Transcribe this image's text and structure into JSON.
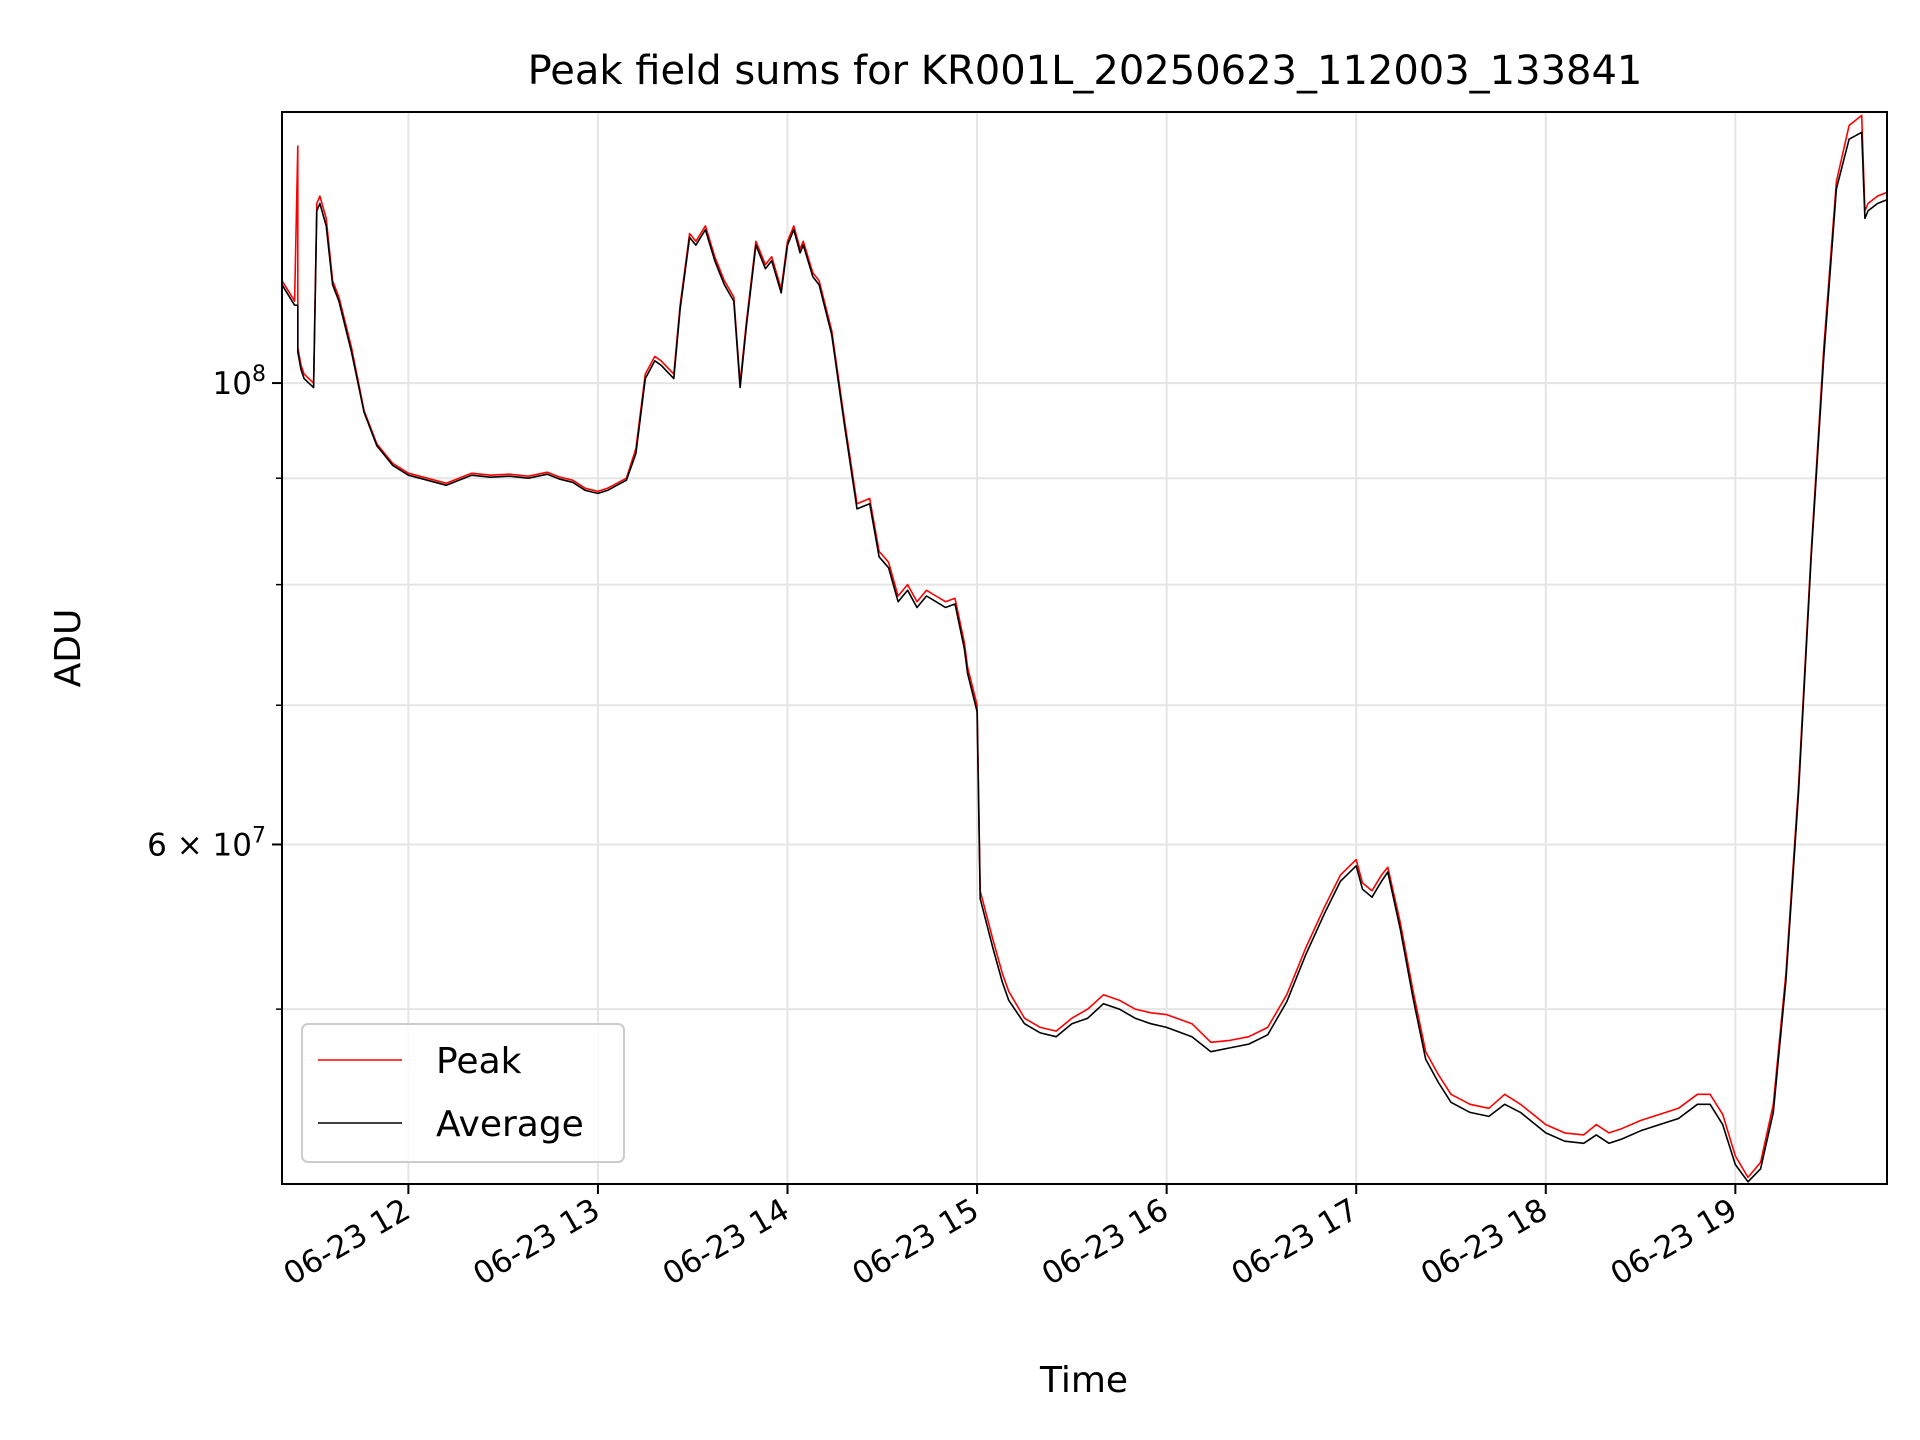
{
  "chart_data": {
    "type": "line",
    "title": "Peak field sums for KR001L_20250623_112003_133841",
    "xlabel": "Time",
    "ylabel": "ADU",
    "yscale": "log",
    "ylim": [
      41200000,
      135000000
    ],
    "xlim": [
      "06-23 11:20",
      "06-23 19:48"
    ],
    "grid": true,
    "legend": "lower-left",
    "x_ticks": [
      "06-23 12",
      "06-23 13",
      "06-23 14",
      "06-23 15",
      "06-23 16",
      "06-23 17",
      "06-23 18",
      "06-23 19"
    ],
    "y_ticks_labeled": [
      {
        "label_base": "10",
        "label_exp": "8",
        "value": 100000000
      },
      {
        "label_base": "6 × 10",
        "label_exp": "7",
        "value": 60000000
      }
    ],
    "y_minor_ticks": [
      50000000,
      70000000,
      80000000,
      90000000
    ],
    "series": [
      {
        "name": "Peak",
        "color": "#ff0000",
        "x": [
          "06-23 11:20",
          "06-23 11:24",
          "06-23 11:25",
          "06-23 11:25",
          "06-23 11:26",
          "06-23 11:27",
          "06-23 11:30",
          "06-23 11:31",
          "06-23 11:32",
          "06-23 11:34",
          "06-23 11:36",
          "06-23 11:38",
          "06-23 11:42",
          "06-23 11:46",
          "06-23 11:50",
          "06-23 11:55",
          "06-23 12:00",
          "06-23 12:06",
          "06-23 12:12",
          "06-23 12:16",
          "06-23 12:20",
          "06-23 12:26",
          "06-23 12:32",
          "06-23 12:38",
          "06-23 12:44",
          "06-23 12:48",
          "06-23 12:52",
          "06-23 12:56",
          "06-23 13:00",
          "06-23 13:03",
          "06-23 13:06",
          "06-23 13:09",
          "06-23 13:12",
          "06-23 13:15",
          "06-23 13:18",
          "06-23 13:20",
          "06-23 13:24",
          "06-23 13:26",
          "06-23 13:29",
          "06-23 13:31",
          "06-23 13:34",
          "06-23 13:37",
          "06-23 13:40",
          "06-23 13:43",
          "06-23 13:45",
          "06-23 13:47",
          "06-23 13:50",
          "06-23 13:53",
          "06-23 13:55",
          "06-23 13:58",
          "06-23 14:00",
          "06-23 14:02",
          "06-23 14:04",
          "06-23 14:05",
          "06-23 14:08",
          "06-23 14:10",
          "06-23 14:14",
          "06-23 14:18",
          "06-23 14:22",
          "06-23 14:26",
          "06-23 14:29",
          "06-23 14:32",
          "06-23 14:35",
          "06-23 14:38",
          "06-23 14:41",
          "06-23 14:44",
          "06-23 14:47",
          "06-23 14:50",
          "06-23 14:53",
          "06-23 14:56",
          "06-23 14:57",
          "06-23 15:00",
          "06-23 15:01",
          "06-23 15:05",
          "06-23 15:08",
          "06-23 15:10",
          "06-23 15:15",
          "06-23 15:20",
          "06-23 15:25",
          "06-23 15:30",
          "06-23 15:35",
          "06-23 15:40",
          "06-23 15:45",
          "06-23 15:50",
          "06-23 15:55",
          "06-23 16:00",
          "06-23 16:08",
          "06-23 16:14",
          "06-23 16:20",
          "06-23 16:26",
          "06-23 16:32",
          "06-23 16:38",
          "06-23 16:44",
          "06-23 16:50",
          "06-23 16:55",
          "06-23 17:00",
          "06-23 17:02",
          "06-23 17:05",
          "06-23 17:08",
          "06-23 17:10",
          "06-23 17:14",
          "06-23 17:18",
          "06-23 17:22",
          "06-23 17:26",
          "06-23 17:30",
          "06-23 17:36",
          "06-23 17:42",
          "06-23 17:47",
          "06-23 17:52",
          "06-23 17:56",
          "06-23 18:00",
          "06-23 18:06",
          "06-23 18:12",
          "06-23 18:16",
          "06-23 18:20",
          "06-23 18:24",
          "06-23 18:30",
          "06-23 18:36",
          "06-23 18:42",
          "06-23 18:48",
          "06-23 18:52",
          "06-23 18:56",
          "06-23 19:00",
          "06-23 19:04",
          "06-23 19:08",
          "06-23 19:12",
          "06-23 19:16",
          "06-23 19:20",
          "06-23 19:24",
          "06-23 19:28",
          "06-23 19:32",
          "06-23 19:36",
          "06-23 19:40",
          "06-23 19:41",
          "06-23 19:42",
          "06-23 19:45",
          "06-23 19:48"
        ],
        "y": [
          112000000,
          109500000,
          130000000,
          104000000,
          102000000,
          101000000,
          100000000,
          122000000,
          123000000,
          120000000,
          112000000,
          110000000,
          104000000,
          97000000,
          93500000,
          91500000,
          90500000,
          90000000,
          89500000,
          90000000,
          90500000,
          90300000,
          90400000,
          90200000,
          90600000,
          90100000,
          89800000,
          89000000,
          88700000,
          89000000,
          89500000,
          90000000,
          93000000,
          101000000,
          103000000,
          102500000,
          101000000,
          109000000,
          118000000,
          117000000,
          119000000,
          115000000,
          112000000,
          110000000,
          100000000,
          107000000,
          117000000,
          114000000,
          115000000,
          111000000,
          117000000,
          119000000,
          116000000,
          117000000,
          113000000,
          112000000,
          106000000,
          96000000,
          87500000,
          88000000,
          83000000,
          82000000,
          79000000,
          80000000,
          78500000,
          79500000,
          79000000,
          78500000,
          78800000,
          75000000,
          73000000,
          70000000,
          57000000,
          54000000,
          52000000,
          51000000,
          49500000,
          49000000,
          48800000,
          49500000,
          50000000,
          50800000,
          50500000,
          50000000,
          49800000,
          49700000,
          49200000,
          48200000,
          48300000,
          48500000,
          49000000,
          50800000,
          53500000,
          56000000,
          58000000,
          59000000,
          57500000,
          57000000,
          58000000,
          58500000,
          55000000,
          51000000,
          47700000,
          46500000,
          45500000,
          45000000,
          44800000,
          45500000,
          45000000,
          44500000,
          44000000,
          43600000,
          43500000,
          44000000,
          43600000,
          43800000,
          44200000,
          44500000,
          44800000,
          45500000,
          45500000,
          44500000,
          42500000,
          41500000,
          42200000,
          45000000,
          52000000,
          64000000,
          83000000,
          104000000,
          125000000,
          133000000,
          134500000,
          121000000,
          122000000,
          123000000,
          123500000
        ]
      },
      {
        "name": "Average",
        "color": "#000000",
        "x": [
          "06-23 11:20",
          "06-23 11:24",
          "06-23 11:25",
          "06-23 11:25",
          "06-23 11:26",
          "06-23 11:27",
          "06-23 11:30",
          "06-23 11:31",
          "06-23 11:32",
          "06-23 11:34",
          "06-23 11:36",
          "06-23 11:38",
          "06-23 11:42",
          "06-23 11:46",
          "06-23 11:50",
          "06-23 11:55",
          "06-23 12:00",
          "06-23 12:06",
          "06-23 12:12",
          "06-23 12:16",
          "06-23 12:20",
          "06-23 12:26",
          "06-23 12:32",
          "06-23 12:38",
          "06-23 12:44",
          "06-23 12:48",
          "06-23 12:52",
          "06-23 12:56",
          "06-23 13:00",
          "06-23 13:03",
          "06-23 13:06",
          "06-23 13:09",
          "06-23 13:12",
          "06-23 13:15",
          "06-23 13:18",
          "06-23 13:20",
          "06-23 13:24",
          "06-23 13:26",
          "06-23 13:29",
          "06-23 13:31",
          "06-23 13:34",
          "06-23 13:37",
          "06-23 13:40",
          "06-23 13:43",
          "06-23 13:45",
          "06-23 13:47",
          "06-23 13:50",
          "06-23 13:53",
          "06-23 13:55",
          "06-23 13:58",
          "06-23 14:00",
          "06-23 14:02",
          "06-23 14:04",
          "06-23 14:05",
          "06-23 14:08",
          "06-23 14:10",
          "06-23 14:14",
          "06-23 14:18",
          "06-23 14:22",
          "06-23 14:26",
          "06-23 14:29",
          "06-23 14:32",
          "06-23 14:35",
          "06-23 14:38",
          "06-23 14:41",
          "06-23 14:44",
          "06-23 14:47",
          "06-23 14:50",
          "06-23 14:53",
          "06-23 14:56",
          "06-23 14:57",
          "06-23 15:00",
          "06-23 15:01",
          "06-23 15:05",
          "06-23 15:08",
          "06-23 15:10",
          "06-23 15:15",
          "06-23 15:20",
          "06-23 15:25",
          "06-23 15:30",
          "06-23 15:35",
          "06-23 15:40",
          "06-23 15:45",
          "06-23 15:50",
          "06-23 15:55",
          "06-23 16:00",
          "06-23 16:08",
          "06-23 16:14",
          "06-23 16:20",
          "06-23 16:26",
          "06-23 16:32",
          "06-23 16:38",
          "06-23 16:44",
          "06-23 16:50",
          "06-23 16:55",
          "06-23 17:00",
          "06-23 17:02",
          "06-23 17:05",
          "06-23 17:08",
          "06-23 17:10",
          "06-23 17:14",
          "06-23 17:18",
          "06-23 17:22",
          "06-23 17:26",
          "06-23 17:30",
          "06-23 17:36",
          "06-23 17:42",
          "06-23 17:47",
          "06-23 17:52",
          "06-23 17:56",
          "06-23 18:00",
          "06-23 18:06",
          "06-23 18:12",
          "06-23 18:16",
          "06-23 18:20",
          "06-23 18:24",
          "06-23 18:30",
          "06-23 18:36",
          "06-23 18:42",
          "06-23 18:48",
          "06-23 18:52",
          "06-23 18:56",
          "06-23 19:00",
          "06-23 19:04",
          "06-23 19:08",
          "06-23 19:12",
          "06-23 19:16",
          "06-23 19:20",
          "06-23 19:24",
          "06-23 19:28",
          "06-23 19:32",
          "06-23 19:36",
          "06-23 19:40",
          "06-23 19:41",
          "06-23 19:42",
          "06-23 19:45",
          "06-23 19:48"
        ],
        "y": [
          111500000,
          109000000,
          109000000,
          103500000,
          101500000,
          100500000,
          99500000,
          121000000,
          122000000,
          119000000,
          111500000,
          109500000,
          103500000,
          96800000,
          93300000,
          91300000,
          90300000,
          89800000,
          89300000,
          89800000,
          90300000,
          90100000,
          90200000,
          90000000,
          90400000,
          89900000,
          89600000,
          88800000,
          88500000,
          88800000,
          89300000,
          89800000,
          92500000,
          100500000,
          102500000,
          102000000,
          100500000,
          108500000,
          117500000,
          116500000,
          118500000,
          114500000,
          111500000,
          109500000,
          99500000,
          106500000,
          116500000,
          113500000,
          114500000,
          110500000,
          116500000,
          118500000,
          115500000,
          116500000,
          112500000,
          111500000,
          105500000,
          95500000,
          87000000,
          87500000,
          82500000,
          81500000,
          78500000,
          79500000,
          78000000,
          79000000,
          78500000,
          78000000,
          78300000,
          74500000,
          72500000,
          69500000,
          56500000,
          53500000,
          51500000,
          50500000,
          49200000,
          48700000,
          48500000,
          49200000,
          49500000,
          50300000,
          50000000,
          49500000,
          49200000,
          49000000,
          48500000,
          47700000,
          47900000,
          48100000,
          48600000,
          50400000,
          53100000,
          55600000,
          57600000,
          58600000,
          57100000,
          56600000,
          57600000,
          58200000,
          54600000,
          50600000,
          47300000,
          46100000,
          45100000,
          44600000,
          44400000,
          45000000,
          44600000,
          44100000,
          43600000,
          43200000,
          43100000,
          43500000,
          43100000,
          43300000,
          43700000,
          44000000,
          44300000,
          45000000,
          45000000,
          44000000,
          42100000,
          41300000,
          41900000,
          44600000,
          51600000,
          63500000,
          82500000,
          103000000,
          124000000,
          131000000,
          132000000,
          120000000,
          121000000,
          122000000,
          122500000
        ]
      }
    ]
  }
}
